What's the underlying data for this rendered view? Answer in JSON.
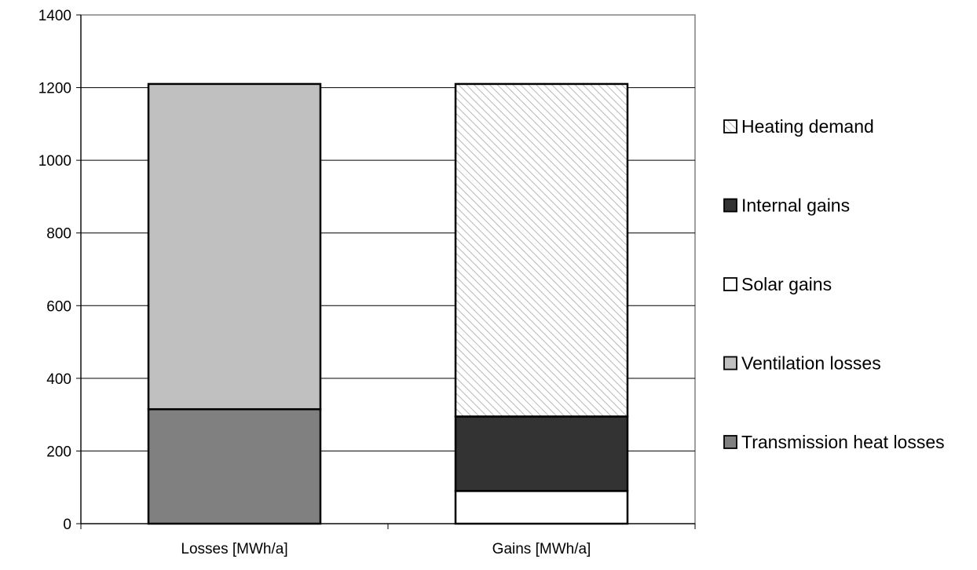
{
  "chart_data": {
    "type": "bar",
    "stacked": true,
    "categories": [
      "Losses [MWh/a]",
      "Gains [MWh/a]"
    ],
    "ylim": [
      0,
      1400
    ],
    "yticks": [
      0,
      200,
      400,
      600,
      800,
      1000,
      1200,
      1400
    ],
    "ytick_labels": [
      "0",
      "200",
      "400",
      "600",
      "800",
      "1000",
      "1200",
      "1400"
    ],
    "grid": true,
    "legend_position": "right",
    "series": [
      {
        "name": "Transmission heat losses",
        "values": [
          315,
          0
        ],
        "color": "#808080",
        "pattern": "solid"
      },
      {
        "name": "Ventilation losses",
        "values": [
          895,
          0
        ],
        "color": "#c0c0c0",
        "pattern": "solid"
      },
      {
        "name": "Solar gains",
        "values": [
          0,
          90
        ],
        "color": "#ffffff",
        "pattern": "solid"
      },
      {
        "name": "Internal gains",
        "values": [
          0,
          205
        ],
        "color": "#333333",
        "pattern": "solid"
      },
      {
        "name": "Heating demand",
        "values": [
          0,
          915
        ],
        "color": "#ffffff",
        "pattern": "hatch"
      }
    ],
    "legend_order": [
      "Heating demand",
      "Internal gains",
      "Solar gains",
      "Ventilation losses",
      "Transmission heat losses"
    ]
  }
}
